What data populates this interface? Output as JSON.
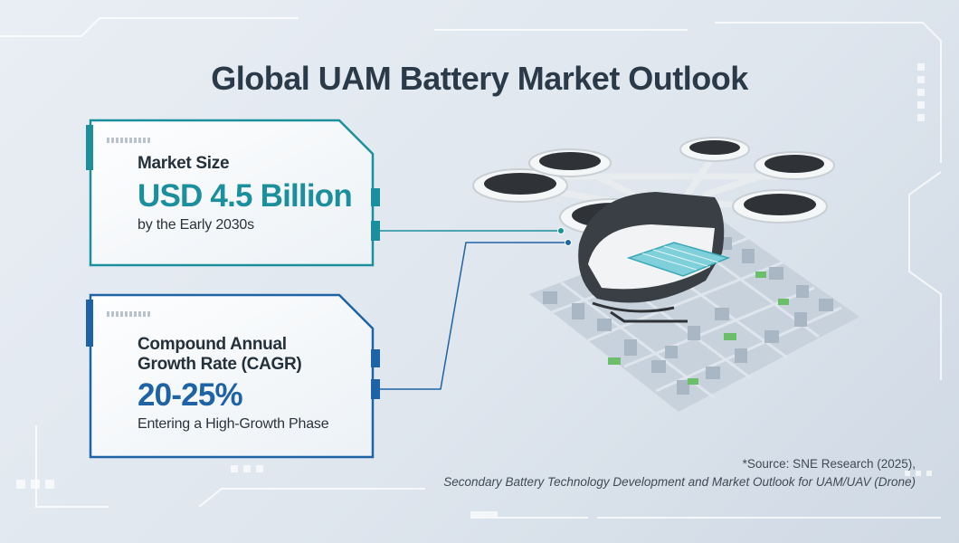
{
  "title": "Global UAM Battery Market Outlook",
  "cards": [
    {
      "label": "Market Size",
      "value": "USD 4.5 Billion",
      "note": "by the Early 2030s",
      "accent": "#1c8f9c"
    },
    {
      "label_line1": "Compound Annual",
      "label_line2": "Growth Rate (CAGR)",
      "value": "20-25%",
      "note": "Entering a High-Growth Phase",
      "accent": "#1e63a6"
    }
  ],
  "source": {
    "line1": "*Source: SNE Research (2025),",
    "line2": "Secondary Battery Technology Development and Market Outlook for UAM/UAV (Drone)"
  },
  "illustration": "evtol-drone-over-city-icon"
}
